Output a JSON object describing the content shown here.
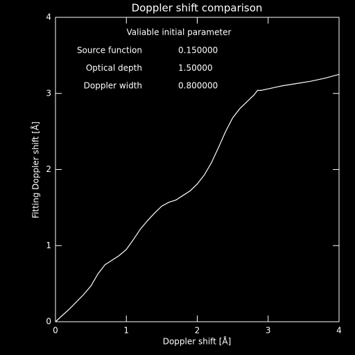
{
  "chart_data": {
    "type": "line",
    "title": "Doppler shift comparison",
    "x_label": "Doppler shift [Å]",
    "y_label": "Fitting Doppler shift [Å]",
    "annotation_heading": "Valiable initial parameter",
    "annotations": [
      {
        "name": "Source function",
        "value": "0.150000"
      },
      {
        "name": "Optical depth",
        "value": "1.50000"
      },
      {
        "name": "Doppler width",
        "value": "0.800000"
      }
    ],
    "x": [
      0,
      0.2,
      0.4,
      0.5,
      0.6,
      0.7,
      0.8,
      0.9,
      1.0,
      1.1,
      1.2,
      1.3,
      1.4,
      1.5,
      1.6,
      1.7,
      1.8,
      1.9,
      2.0,
      2.1,
      2.2,
      2.3,
      2.4,
      2.5,
      2.6,
      2.7,
      2.8,
      2.85,
      2.9,
      3.0,
      3.1,
      3.2,
      3.4,
      3.6,
      3.8,
      4.0
    ],
    "series": [
      {
        "color": "#ffffff",
        "values": [
          0,
          0.17,
          0.36,
          0.47,
          0.63,
          0.75,
          0.81,
          0.87,
          0.95,
          1.08,
          1.22,
          1.33,
          1.43,
          1.52,
          1.57,
          1.6,
          1.66,
          1.72,
          1.81,
          1.93,
          2.09,
          2.29,
          2.5,
          2.68,
          2.8,
          2.89,
          2.98,
          3.04,
          3.04,
          3.06,
          3.08,
          3.1,
          3.13,
          3.16,
          3.2,
          3.25
        ]
      }
    ],
    "xlim": [
      0,
      4
    ],
    "ylim": [
      0,
      4
    ],
    "xticks": [
      0,
      1,
      2,
      3,
      4
    ],
    "yticks": [
      0,
      1,
      2,
      3,
      4
    ]
  }
}
